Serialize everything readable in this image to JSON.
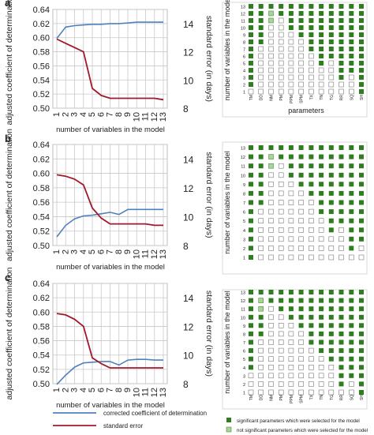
{
  "chart_data": [
    {
      "type": "line",
      "panel_label": "a",
      "x": [
        1,
        2,
        3,
        4,
        5,
        6,
        7,
        8,
        9,
        10,
        11,
        12,
        13
      ],
      "xlabel": "number of variables in the model",
      "ylabel": "adjusted coefficient of determination",
      "y2label": "standard error (in days)",
      "ylim": [
        0.5,
        0.64
      ],
      "yticks": [
        "0.50",
        "0.52",
        "0.54",
        "0.56",
        "0.58",
        "0.60",
        "0.62",
        "0.64"
      ],
      "y2lim": [
        8,
        15
      ],
      "y2ticks": [
        "8",
        "10",
        "12",
        "14"
      ],
      "grid": true,
      "series": [
        {
          "axis": "left",
          "color": "#4f81bd",
          "values": [
            0.599,
            0.615,
            0.617,
            0.618,
            0.619,
            0.619,
            0.62,
            0.62,
            0.621,
            0.622,
            0.622,
            0.622,
            0.622
          ]
        },
        {
          "axis": "right",
          "color": "#a0182c",
          "values": [
            12.9,
            12.6,
            12.3,
            12.0,
            9.4,
            8.9,
            8.7,
            8.7,
            8.7,
            8.7,
            8.7,
            8.7,
            8.6
          ]
        }
      ]
    },
    {
      "type": "line",
      "panel_label": "b",
      "x": [
        1,
        2,
        3,
        4,
        5,
        6,
        7,
        8,
        9,
        10,
        11,
        12,
        13
      ],
      "xlabel": "number of variables in the model",
      "ylabel": "adjusted coefficient of determination",
      "y2label": "standard error (in days)",
      "ylim": [
        0.5,
        0.64
      ],
      "yticks": [
        "0.50",
        "0.52",
        "0.54",
        "0.56",
        "0.58",
        "0.60",
        "0.62",
        "0.64"
      ],
      "y2lim": [
        8,
        15
      ],
      "y2ticks": [
        "8",
        "10",
        "12",
        "14"
      ],
      "grid": true,
      "series": [
        {
          "axis": "left",
          "color": "#4f81bd",
          "values": [
            0.512,
            0.528,
            0.537,
            0.541,
            0.542,
            0.544,
            0.546,
            0.543,
            0.55,
            0.55,
            0.55,
            0.55,
            0.55
          ]
        },
        {
          "axis": "right",
          "color": "#a0182c",
          "values": [
            12.9,
            12.8,
            12.6,
            12.2,
            10.6,
            9.9,
            9.5,
            9.5,
            9.5,
            9.5,
            9.5,
            9.4,
            9.4
          ]
        }
      ]
    },
    {
      "type": "line",
      "panel_label": "c",
      "x": [
        1,
        2,
        3,
        4,
        5,
        6,
        7,
        8,
        9,
        10,
        11,
        12,
        13
      ],
      "xlabel": "number of variables in the model",
      "ylabel": "adjusted coefficient of determination",
      "y2label": "standard error (in days)",
      "ylim": [
        0.5,
        0.64
      ],
      "yticks": [
        "0.50",
        "0.52",
        "0.54",
        "0.56",
        "0.58",
        "0.60",
        "0.62",
        "0.64"
      ],
      "y2lim": [
        8,
        15
      ],
      "y2ticks": [
        "8",
        "10",
        "12",
        "14"
      ],
      "grid": true,
      "legend_position": "bottom",
      "series": [
        {
          "name": "corrected coefficient of determination",
          "axis": "left",
          "color": "#4f81bd",
          "values": [
            0.499,
            0.512,
            0.523,
            0.529,
            0.53,
            0.531,
            0.531,
            0.526,
            0.533,
            0.534,
            0.534,
            0.533,
            0.533
          ]
        },
        {
          "name": "standard error",
          "axis": "right",
          "color": "#a0182c",
          "values": [
            12.9,
            12.8,
            12.5,
            12.0,
            9.8,
            9.4,
            9.1,
            9.1,
            9.1,
            9.1,
            9.1,
            9.1,
            9.1
          ]
        }
      ]
    },
    {
      "type": "heatmap",
      "panel_label": "a",
      "rows": [
        "13",
        "12",
        "11",
        "10",
        "9",
        "8",
        "7",
        "6",
        "5",
        "4",
        "3",
        "2",
        "1"
      ],
      "cols": [
        "TM",
        "DD",
        "NM",
        "PM",
        "PPM",
        "SPM",
        "TX",
        "TN",
        "TG",
        "RR",
        "SQ",
        "SH"
      ],
      "ylabel": "number of variables in the model",
      "xlabel": "parameters",
      "cells": [
        [
          1,
          1,
          1,
          1,
          1,
          1,
          1,
          1,
          1,
          1,
          1,
          1
        ],
        [
          1,
          1,
          2,
          1,
          1,
          1,
          1,
          1,
          1,
          1,
          1,
          1
        ],
        [
          1,
          1,
          2,
          0,
          1,
          1,
          1,
          1,
          1,
          1,
          1,
          1
        ],
        [
          1,
          1,
          0,
          0,
          1,
          1,
          1,
          1,
          1,
          1,
          1,
          1
        ],
        [
          1,
          1,
          0,
          0,
          0,
          1,
          1,
          1,
          1,
          1,
          1,
          1
        ],
        [
          1,
          1,
          0,
          0,
          0,
          0,
          1,
          1,
          1,
          1,
          1,
          1
        ],
        [
          1,
          0,
          0,
          0,
          0,
          0,
          1,
          1,
          1,
          1,
          1,
          1
        ],
        [
          1,
          0,
          0,
          0,
          0,
          0,
          0,
          1,
          1,
          1,
          1,
          1
        ],
        [
          1,
          0,
          0,
          0,
          0,
          0,
          0,
          1,
          0,
          1,
          1,
          1
        ],
        [
          1,
          0,
          0,
          0,
          0,
          0,
          0,
          0,
          0,
          1,
          1,
          1
        ],
        [
          1,
          0,
          0,
          0,
          0,
          0,
          0,
          0,
          0,
          1,
          0,
          1
        ],
        [
          1,
          0,
          0,
          0,
          0,
          0,
          0,
          0,
          0,
          0,
          0,
          1
        ],
        [
          0,
          0,
          0,
          0,
          0,
          0,
          0,
          0,
          0,
          0,
          0,
          1
        ]
      ]
    },
    {
      "type": "heatmap",
      "panel_label": "b",
      "rows": [
        "13",
        "12",
        "11",
        "10",
        "9",
        "8",
        "7",
        "6",
        "5",
        "4",
        "3",
        "2",
        "1"
      ],
      "cols": [
        "TM",
        "DD",
        "NM",
        "PM",
        "PPM",
        "SPM",
        "TX",
        "TN",
        "TG",
        "RR",
        "SQ",
        "SH"
      ],
      "ylabel": "number of variables in the model",
      "cells": [
        [
          1,
          1,
          1,
          1,
          1,
          1,
          1,
          1,
          1,
          1,
          1,
          1
        ],
        [
          1,
          1,
          2,
          1,
          1,
          1,
          1,
          1,
          1,
          1,
          1,
          1
        ],
        [
          1,
          1,
          2,
          0,
          1,
          1,
          1,
          1,
          1,
          1,
          1,
          1
        ],
        [
          1,
          1,
          0,
          0,
          1,
          1,
          1,
          1,
          1,
          1,
          1,
          1
        ],
        [
          1,
          1,
          0,
          0,
          0,
          1,
          1,
          1,
          1,
          1,
          1,
          1
        ],
        [
          1,
          1,
          0,
          0,
          0,
          0,
          1,
          1,
          1,
          1,
          1,
          1
        ],
        [
          1,
          1,
          0,
          0,
          0,
          0,
          0,
          1,
          1,
          1,
          1,
          1
        ],
        [
          1,
          0,
          0,
          0,
          0,
          0,
          0,
          1,
          1,
          1,
          1,
          1
        ],
        [
          1,
          0,
          0,
          0,
          0,
          0,
          0,
          0,
          1,
          1,
          1,
          1
        ],
        [
          1,
          0,
          0,
          0,
          0,
          0,
          0,
          0,
          1,
          0,
          1,
          1
        ],
        [
          1,
          0,
          0,
          0,
          0,
          0,
          0,
          0,
          0,
          0,
          1,
          1
        ],
        [
          1,
          0,
          0,
          0,
          0,
          0,
          0,
          0,
          0,
          0,
          1,
          0
        ],
        [
          1,
          0,
          0,
          0,
          0,
          0,
          0,
          0,
          0,
          0,
          0,
          0
        ]
      ]
    },
    {
      "type": "heatmap",
      "panel_label": "c",
      "rows": [
        "13",
        "12",
        "11",
        "10",
        "9",
        "8",
        "7",
        "6",
        "5",
        "4",
        "3",
        "2",
        "1"
      ],
      "cols": [
        "TM",
        "DD",
        "NM",
        "PM",
        "PPM",
        "SPM",
        "TX",
        "TN",
        "TG",
        "RR",
        "SQ",
        "SH"
      ],
      "ylabel": "number of variables in the model",
      "cells": [
        [
          1,
          1,
          1,
          1,
          1,
          1,
          1,
          1,
          1,
          1,
          1,
          1
        ],
        [
          1,
          2,
          1,
          1,
          1,
          1,
          1,
          1,
          1,
          1,
          1,
          1
        ],
        [
          1,
          2,
          0,
          1,
          1,
          1,
          1,
          1,
          1,
          1,
          1,
          1
        ],
        [
          1,
          1,
          0,
          0,
          1,
          1,
          1,
          1,
          1,
          1,
          1,
          1
        ],
        [
          1,
          1,
          0,
          0,
          0,
          1,
          1,
          1,
          1,
          1,
          1,
          1
        ],
        [
          1,
          1,
          0,
          0,
          0,
          0,
          1,
          1,
          1,
          1,
          1,
          1
        ],
        [
          1,
          0,
          0,
          0,
          0,
          0,
          1,
          1,
          1,
          1,
          1,
          1
        ],
        [
          1,
          0,
          0,
          0,
          0,
          0,
          0,
          1,
          1,
          1,
          1,
          1
        ],
        [
          1,
          0,
          0,
          0,
          0,
          0,
          0,
          0,
          1,
          1,
          1,
          1
        ],
        [
          1,
          0,
          0,
          0,
          0,
          0,
          0,
          0,
          0,
          1,
          1,
          1
        ],
        [
          0,
          0,
          0,
          0,
          0,
          0,
          0,
          0,
          0,
          1,
          1,
          1
        ],
        [
          0,
          0,
          0,
          0,
          0,
          0,
          0,
          0,
          0,
          1,
          0,
          1
        ],
        [
          0,
          0,
          0,
          0,
          0,
          0,
          0,
          0,
          0,
          0,
          0,
          1
        ]
      ]
    }
  ],
  "grid_legend": {
    "filled_label": "significant parameters which were selected for the model",
    "light_label": "not significant parameters which were selected for the model"
  },
  "colors": {
    "grid_filled": "#2e7d1e",
    "grid_light": "#a9d39a",
    "grid_empty_border": "#7a7a7a",
    "gridline": "#c8c8c8"
  }
}
